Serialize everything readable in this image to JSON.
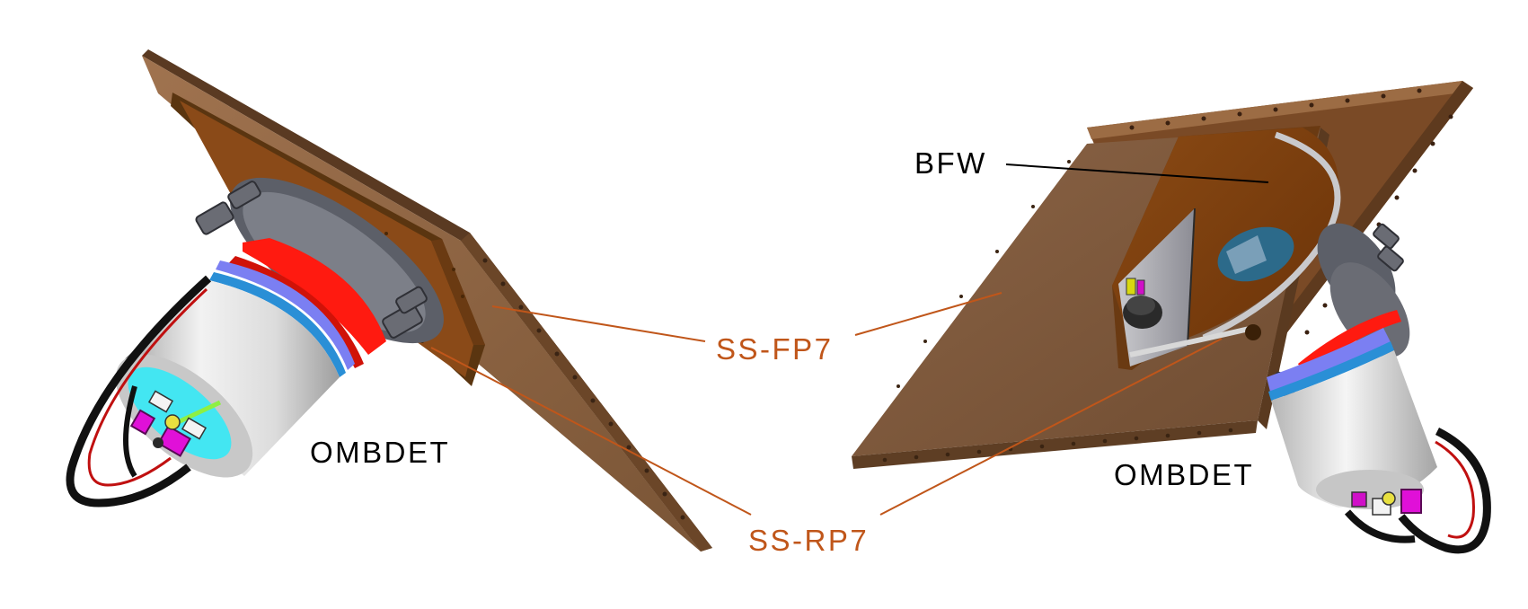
{
  "labels": {
    "ombdet_left": "OMBDET",
    "ombdet_right": "OMBDET",
    "bfw": "BFW",
    "ss_fp7": "SS-FP7",
    "ss_rp7": "SS-RP7"
  },
  "colors": {
    "plate": "#8a6244",
    "plate_dark": "#5e3b1f",
    "plate_inner": "#7a3f14",
    "callout": "#c0561a",
    "text": "#000000",
    "flange_red": "#ff1a10",
    "flange_blue": "#7b7ff2",
    "cylinder": "#d8d8d8",
    "cyan_face": "#43e6f2",
    "connector_magenta": "#e010d8"
  }
}
